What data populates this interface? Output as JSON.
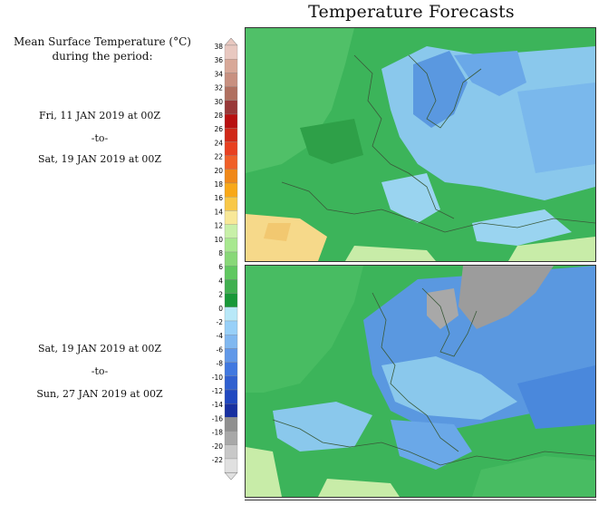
{
  "title": "Temperature Forecasts",
  "legend": {
    "title_line1": "Mean Surface Temperature (°C)",
    "title_line2": "during the period:",
    "levels": [
      "38",
      "36",
      "34",
      "32",
      "30",
      "28",
      "26",
      "24",
      "22",
      "20",
      "18",
      "16",
      "14",
      "12",
      "10",
      "8",
      "6",
      "4",
      "2",
      "0",
      "-2",
      "-4",
      "-6",
      "-8",
      "-10",
      "-12",
      "-14",
      "-16",
      "-18",
      "-20",
      "-22"
    ],
    "colors": [
      "#e8c8c0",
      "#d8a898",
      "#c89080",
      "#b07060",
      "#983838",
      "#b81010",
      "#d02818",
      "#e84020",
      "#f06028",
      "#f08818",
      "#f8a818",
      "#f8c848",
      "#f8e898",
      "#c8f0a8",
      "#a8e890",
      "#88d878",
      "#60c860",
      "#40b050",
      "#189838",
      "#b8e8f8",
      "#98d0f8",
      "#80b8f0",
      "#6098e8",
      "#4078e0",
      "#3060d0",
      "#2048c0",
      "#1830a0",
      "#909090",
      "#a8a8a8",
      "#c8c8c8",
      "#e0e0e0"
    ]
  },
  "period1": {
    "start": "Fri, 11 JAN 2019 at 00Z",
    "sep": "-to-",
    "end": "Sat, 19 JAN 2019 at 00Z"
  },
  "period2": {
    "start": "Sat, 19 JAN 2019 at 00Z",
    "sep": "-to-",
    "end": "Sun, 27 JAN 2019 at 00Z"
  }
}
